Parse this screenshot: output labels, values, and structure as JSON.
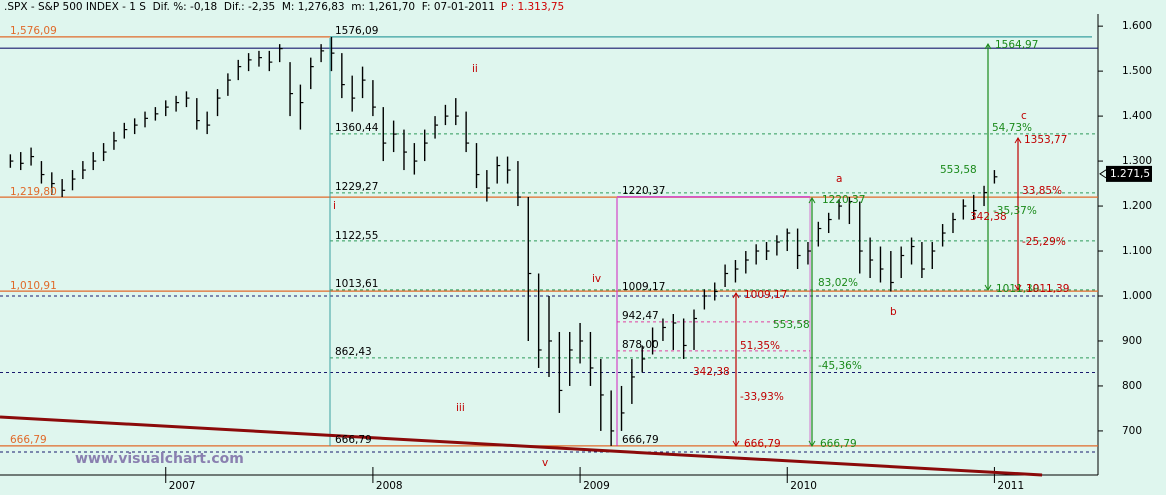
{
  "chart_data": {
    "type": "ohlc",
    "header": ".SPX - S&P 500 INDEX - 1 S  Dif. %: -0,18  Dif.: -2,35  M: 1,276,83  m: 1,261,70  F: 07-01-2011",
    "header_price": "P : 1.313,75",
    "watermark": "www.visualchart.com",
    "bar_color": "#000000",
    "x": [
      2006.25,
      2006.3,
      2006.35,
      2006.4,
      2006.45,
      2006.5,
      2006.55,
      2006.6,
      2006.65,
      2006.7,
      2006.75,
      2006.8,
      2006.85,
      2006.9,
      2006.95,
      2007.0,
      2007.05,
      2007.1,
      2007.15,
      2007.2,
      2007.25,
      2007.3,
      2007.35,
      2007.4,
      2007.45,
      2007.5,
      2007.55,
      2007.6,
      2007.65,
      2007.7,
      2007.75,
      2007.8,
      2007.85,
      2007.9,
      2007.95,
      2008.0,
      2008.05,
      2008.1,
      2008.15,
      2008.2,
      2008.25,
      2008.3,
      2008.35,
      2008.4,
      2008.45,
      2008.5,
      2008.55,
      2008.6,
      2008.65,
      2008.7,
      2008.75,
      2008.8,
      2008.85,
      2008.9,
      2008.95,
      2009.0,
      2009.05,
      2009.1,
      2009.15,
      2009.2,
      2009.25,
      2009.3,
      2009.35,
      2009.4,
      2009.45,
      2009.5,
      2009.55,
      2009.6,
      2009.65,
      2009.7,
      2009.75,
      2009.8,
      2009.85,
      2009.9,
      2009.95,
      2010.0,
      2010.05,
      2010.1,
      2010.15,
      2010.2,
      2010.25,
      2010.3,
      2010.35,
      2010.4,
      2010.45,
      2010.5,
      2010.55,
      2010.6,
      2010.65,
      2010.7,
      2010.75,
      2010.8,
      2010.85,
      2010.9,
      2010.95,
      2011.0
    ],
    "high": [
      1315,
      1320,
      1330,
      1300,
      1275,
      1260,
      1280,
      1300,
      1320,
      1340,
      1365,
      1385,
      1395,
      1410,
      1420,
      1435,
      1445,
      1455,
      1440,
      1410,
      1460,
      1495,
      1525,
      1540,
      1545,
      1545,
      1560,
      1520,
      1470,
      1530,
      1560,
      1576,
      1540,
      1490,
      1510,
      1480,
      1420,
      1390,
      1370,
      1340,
      1370,
      1400,
      1425,
      1440,
      1410,
      1340,
      1280,
      1310,
      1310,
      1300,
      1220,
      1050,
      1000,
      920,
      920,
      940,
      920,
      860,
      790,
      800,
      860,
      890,
      930,
      950,
      960,
      950,
      970,
      1015,
      1030,
      1070,
      1080,
      1100,
      1115,
      1120,
      1135,
      1150,
      1150,
      1120,
      1165,
      1185,
      1215,
      1220,
      1210,
      1130,
      1110,
      1100,
      1110,
      1130,
      1120,
      1120,
      1160,
      1185,
      1215,
      1225,
      1245,
      1280
    ],
    "low": [
      1285,
      1280,
      1290,
      1250,
      1225,
      1220,
      1235,
      1260,
      1280,
      1300,
      1325,
      1350,
      1360,
      1375,
      1390,
      1400,
      1410,
      1420,
      1370,
      1360,
      1400,
      1445,
      1480,
      1500,
      1510,
      1500,
      1520,
      1400,
      1370,
      1460,
      1520,
      1500,
      1440,
      1410,
      1440,
      1400,
      1300,
      1320,
      1280,
      1270,
      1300,
      1350,
      1380,
      1380,
      1320,
      1240,
      1210,
      1250,
      1250,
      1200,
      900,
      840,
      820,
      740,
      800,
      850,
      800,
      700,
      666.79,
      700,
      760,
      830,
      870,
      900,
      880,
      860,
      880,
      970,
      990,
      1020,
      1030,
      1050,
      1070,
      1080,
      1090,
      1100,
      1060,
      1070,
      1110,
      1140,
      1170,
      1160,
      1050,
      1040,
      1030,
      1010,
      1040,
      1070,
      1040,
      1060,
      1110,
      1140,
      1170,
      1170,
      1200,
      1250
    ],
    "close": [
      1300,
      1295,
      1310,
      1270,
      1250,
      1235,
      1260,
      1280,
      1300,
      1320,
      1345,
      1370,
      1380,
      1395,
      1405,
      1420,
      1430,
      1440,
      1390,
      1380,
      1440,
      1480,
      1510,
      1525,
      1530,
      1520,
      1550,
      1450,
      1430,
      1510,
      1545,
      1540,
      1470,
      1440,
      1480,
      1420,
      1340,
      1360,
      1320,
      1300,
      1340,
      1380,
      1400,
      1400,
      1340,
      1270,
      1240,
      1290,
      1280,
      1220,
      1050,
      880,
      900,
      790,
      880,
      900,
      840,
      780,
      700,
      740,
      820,
      860,
      900,
      930,
      940,
      890,
      950,
      1000,
      1010,
      1050,
      1060,
      1080,
      1100,
      1100,
      1120,
      1140,
      1090,
      1100,
      1150,
      1170,
      1200,
      1210,
      1100,
      1080,
      1060,
      1030,
      1090,
      1110,
      1060,
      1100,
      1140,
      1170,
      1200,
      1190,
      1230,
      1265
    ],
    "xlim": [
      2006.2,
      2011.5
    ],
    "xticks": [
      2007,
      2008,
      2009,
      2010,
      2011
    ],
    "ylim": [
      602,
      1627
    ],
    "yticks": [
      {
        "value": 700,
        "label": "700"
      },
      {
        "value": 800,
        "label": "800"
      },
      {
        "value": 900,
        "label": "900"
      },
      {
        "value": 1000,
        "label": "1.000"
      },
      {
        "value": 1100,
        "label": "1.100"
      },
      {
        "value": 1200,
        "label": "1.200"
      },
      {
        "value": 1300,
        "label": "1.300"
      },
      {
        "value": 1400,
        "label": "1.400"
      },
      {
        "value": 1500,
        "label": "1.500"
      },
      {
        "value": 1600,
        "label": "1.600"
      }
    ],
    "last": {
      "value": 1271.5,
      "label": "1.271,5"
    },
    "levels": [
      {
        "value": 1576.09,
        "color": "#e06a2a",
        "dashed": false
      },
      {
        "value": 1576.09,
        "color": "#3aa0a0",
        "dashed": false
      },
      {
        "value": 1551,
        "color": "#1a1a6e",
        "dashed": false
      },
      {
        "value": 1360.44,
        "color": "#2e9a5a",
        "dashed": true
      },
      {
        "value": 1229.27,
        "color": "#2e9a5a",
        "dashed": true
      },
      {
        "value": 1219.8,
        "color": "#e06a2a",
        "dashed": false
      },
      {
        "value": 1122.55,
        "color": "#2e9a5a",
        "dashed": true
      },
      {
        "value": 1013.61,
        "color": "#2e9a5a",
        "dashed": true
      },
      {
        "value": 1010.91,
        "color": "#e06a2a",
        "dashed": false
      },
      {
        "value": 1000,
        "color": "#1a1a6e",
        "dashed": true
      },
      {
        "value": 862.43,
        "color": "#2e9a5a",
        "dashed": true
      },
      {
        "value": 830,
        "color": "#1a1a6e",
        "dashed": true
      },
      {
        "value": 666.79,
        "color": "#e06a2a",
        "dashed": false
      },
      {
        "value": 653,
        "color": "#1a1a6e",
        "dashed": true
      },
      {
        "value": 942.47,
        "color": "#e040a0",
        "dashed": true
      },
      {
        "value": 878,
        "color": "#e040a0",
        "dashed": true
      },
      {
        "value": 1220.37,
        "color": "#d020c0",
        "dashed": false
      }
    ],
    "trendline": {
      "x": [
        2006.2,
        2011.23
      ],
      "y": [
        731,
        602
      ],
      "color": "#8b0a0a"
    },
    "annotations": [
      {
        "text": "1576,09",
        "color": "#000000"
      },
      {
        "text": "1,576,09",
        "color": "#e06a2a"
      },
      {
        "text": "ii",
        "color": "#c00000"
      },
      {
        "text": "1360,44",
        "color": "#000000"
      },
      {
        "text": "1229,27",
        "color": "#000000"
      },
      {
        "text": "1,219,80",
        "color": "#e06a2a"
      },
      {
        "text": "i",
        "color": "#c00000"
      },
      {
        "text": "1220,37",
        "color": "#000000"
      },
      {
        "text": "iv",
        "color": "#c00000"
      },
      {
        "text": "1122,55",
        "color": "#000000"
      },
      {
        "text": "1013,61",
        "color": "#000000"
      },
      {
        "text": "1,010,91",
        "color": "#e06a2a"
      },
      {
        "text": "1009,17",
        "color": "#000000"
      },
      {
        "text": "1009,17",
        "color": "#c00000"
      },
      {
        "text": "942,47",
        "color": "#000000"
      },
      {
        "text": "878,00",
        "color": "#000000"
      },
      {
        "text": "862,43",
        "color": "#000000"
      },
      {
        "text": "553,58",
        "color": "#1a8a1a"
      },
      {
        "text": "51,35%",
        "color": "#c00000"
      },
      {
        "text": "-45,36%",
        "color": "#1a8a1a"
      },
      {
        "text": "342,38",
        "color": "#c00000"
      },
      {
        "text": "-33,93%",
        "color": "#c00000"
      },
      {
        "text": "iii",
        "color": "#c00000"
      },
      {
        "text": "666,79",
        "color": "#000000"
      },
      {
        "text": "666,79",
        "color": "#000000"
      },
      {
        "text": "666,79",
        "color": "#e06a2a"
      },
      {
        "text": "666,79",
        "color": "#c00000"
      },
      {
        "text": "666,79",
        "color": "#1a8a1a"
      },
      {
        "text": "v",
        "color": "#c00000"
      },
      {
        "text": "1220,37",
        "color": "#1a8a1a"
      },
      {
        "text": "a",
        "color": "#c00000"
      },
      {
        "text": "83,02%",
        "color": "#1a8a1a"
      },
      {
        "text": "b",
        "color": "#c00000"
      },
      {
        "text": "1564,97",
        "color": "#1a8a1a"
      },
      {
        "text": "c",
        "color": "#c00000"
      },
      {
        "text": "54,73%",
        "color": "#1a8a1a"
      },
      {
        "text": "1353,77",
        "color": "#c00000"
      },
      {
        "text": "553,58",
        "color": "#1a8a1a"
      },
      {
        "text": "33,85%",
        "color": "#c00000"
      },
      {
        "text": "342,38",
        "color": "#c00000"
      },
      {
        "text": "-35,37%",
        "color": "#1a8a1a"
      },
      {
        "text": "-25,29%",
        "color": "#c00000"
      },
      {
        "text": "1011,39",
        "color": "#1a8a1a"
      },
      {
        "text": "1011,39",
        "color": "#c00000"
      }
    ]
  }
}
